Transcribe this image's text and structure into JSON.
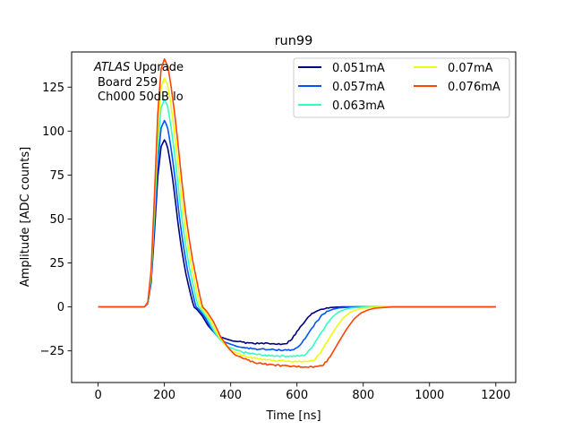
{
  "chart_data": {
    "type": "line",
    "title": "run99",
    "xlabel": "Time [ns]",
    "ylabel": "Amplitude [ADC counts]",
    "xlim": [
      -80,
      1260
    ],
    "ylim": [
      -43,
      145
    ],
    "xticks": [
      0,
      200,
      400,
      600,
      800,
      1000,
      1200
    ],
    "yticks": [
      -25,
      0,
      25,
      50,
      75,
      100,
      125
    ],
    "ytick_labels": [
      "−25",
      "0",
      "25",
      "50",
      "75",
      "100",
      "125"
    ],
    "grid": false,
    "legend_position": "top-right",
    "legend_columns": 2,
    "annotation": {
      "italic": "ATLAS",
      "rest": " Upgrade",
      "line2": "Board 259",
      "line3": "Ch000 50dB lo"
    },
    "pulse_shape": {
      "x": [
        0,
        140,
        150,
        160,
        170,
        180,
        190,
        200,
        210,
        220,
        230,
        240,
        250,
        260,
        270,
        280,
        290,
        300,
        320,
        340,
        360,
        380,
        400,
        450,
        500,
        550,
        600,
        630,
        650,
        660,
        670,
        680,
        700,
        720,
        740,
        760,
        780,
        800,
        850,
        900,
        1000,
        1100,
        1200
      ],
      "y": [
        0,
        0,
        0.02,
        0.15,
        0.45,
        0.78,
        0.96,
        1.0,
        0.97,
        0.88,
        0.77,
        0.64,
        0.5,
        0.38,
        0.28,
        0.19,
        0.12,
        0.05,
        -0.07,
        -0.25,
        -0.5,
        -0.67,
        -0.8,
        -0.92,
        -0.97,
        -0.99,
        -1.0,
        -1.0,
        -0.98,
        -0.92,
        -0.85,
        -0.75,
        -0.55,
        -0.36,
        -0.2,
        -0.1,
        -0.05,
        -0.02,
        0,
        0,
        0,
        0,
        0
      ]
    },
    "series": [
      {
        "name": "0.051mA",
        "color": "#00007f",
        "peak": 95,
        "trough": -21,
        "width": 0.82
      },
      {
        "name": "0.057mA",
        "color": "#0055ff",
        "peak": 106,
        "trough": -24.5,
        "width": 0.88
      },
      {
        "name": "0.063mA",
        "color": "#33ffc4",
        "peak": 118,
        "trough": -28,
        "width": 0.94
      },
      {
        "name": "0.07mA",
        "color": "#ebff0c",
        "peak": 130,
        "trough": -31,
        "width": 1.0
      },
      {
        "name": "0.076mA",
        "color": "#ff4300",
        "peak": 141,
        "trough": -34,
        "width": 1.06
      }
    ]
  }
}
